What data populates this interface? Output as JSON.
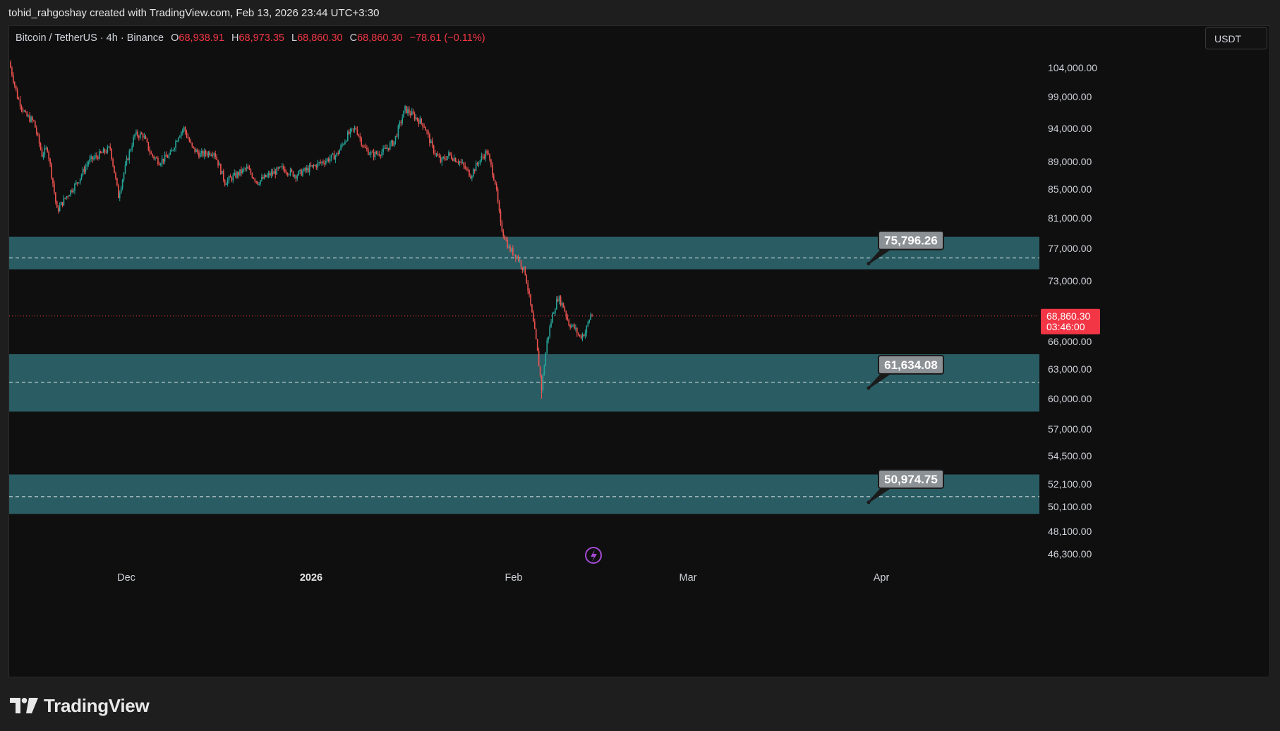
{
  "header": {
    "attribution": "tohid_rahgoshay created with TradingView.com, Feb 13, 2026 23:44 UTC+3:30"
  },
  "legend": {
    "symbol": "Bitcoin / TetherUS · 4h · Binance",
    "open_label": "O",
    "open": "68,938.91",
    "high_label": "H",
    "high": "68,973.35",
    "low_label": "L",
    "low": "68,860.30",
    "close_label": "C",
    "close": "68,860.30",
    "change": "−78.61 (−0.11%)"
  },
  "currency": "USDT",
  "last_price": {
    "value": "68,860.30",
    "countdown": "03:46:00",
    "color": "#f23645"
  },
  "colors": {
    "zone": "#2a5c64",
    "up": "#26a69a",
    "down": "#ef5350",
    "accent": "#f23645"
  },
  "watermark": {
    "icon": "lightning-icon",
    "color": "#a64bd6"
  },
  "brand": {
    "name": "TradingView"
  },
  "chart_data": {
    "type": "candlestick",
    "interval": "4h",
    "y_ticks": [
      "104,000.00",
      "99,000.00",
      "94,000.00",
      "89,000.00",
      "85,000.00",
      "81,000.00",
      "77,000.00",
      "73,000.00",
      "66,000.00",
      "63,000.00",
      "60,000.00",
      "57,000.00",
      "54,500.00",
      "52,100.00",
      "50,100.00",
      "48,100.00",
      "46,300.00"
    ],
    "x_ticks": [
      {
        "label": "Dec",
        "bold": false
      },
      {
        "label": "2026",
        "bold": true
      },
      {
        "label": "Feb",
        "bold": false
      },
      {
        "label": "Mar",
        "bold": false
      },
      {
        "label": "Apr",
        "bold": false
      }
    ],
    "zones": [
      {
        "label": "75,796.26",
        "value": 75796.26,
        "top": 78500,
        "bottom": 74400
      },
      {
        "label": "61,634.08",
        "value": 61634.08,
        "top": 64600,
        "bottom": 58700
      },
      {
        "label": "50,974.75",
        "value": 50974.75,
        "top": 52900,
        "bottom": 49500
      }
    ],
    "price_path": [
      [
        0,
        105000
      ],
      [
        6,
        99000
      ],
      [
        12,
        96000
      ],
      [
        18,
        95000
      ],
      [
        24,
        90000
      ],
      [
        28,
        91000
      ],
      [
        35,
        82000
      ],
      [
        42,
        84000
      ],
      [
        50,
        86000
      ],
      [
        58,
        89000
      ],
      [
        66,
        90000
      ],
      [
        74,
        91000
      ],
      [
        80,
        84000
      ],
      [
        86,
        89000
      ],
      [
        92,
        93000
      ],
      [
        98,
        93000
      ],
      [
        104,
        90000
      ],
      [
        110,
        89000
      ],
      [
        118,
        90000
      ],
      [
        124,
        93000
      ],
      [
        128,
        94000
      ],
      [
        134,
        91000
      ],
      [
        140,
        90000
      ],
      [
        150,
        90500
      ],
      [
        158,
        86000
      ],
      [
        166,
        87000
      ],
      [
        174,
        88000
      ],
      [
        182,
        86000
      ],
      [
        190,
        87000
      ],
      [
        200,
        88000
      ],
      [
        210,
        87000
      ],
      [
        220,
        88000
      ],
      [
        230,
        89000
      ],
      [
        240,
        90000
      ],
      [
        248,
        93000
      ],
      [
        254,
        94000
      ],
      [
        260,
        91000
      ],
      [
        266,
        90000
      ],
      [
        274,
        90500
      ],
      [
        282,
        92000
      ],
      [
        290,
        97000
      ],
      [
        296,
        96000
      ],
      [
        304,
        94500
      ],
      [
        310,
        91000
      ],
      [
        316,
        89000
      ],
      [
        322,
        90000
      ],
      [
        330,
        89000
      ],
      [
        338,
        87000
      ],
      [
        344,
        89000
      ],
      [
        350,
        90500
      ],
      [
        356,
        86000
      ],
      [
        360,
        80000
      ],
      [
        366,
        77000
      ],
      [
        372,
        76000
      ],
      [
        378,
        74000
      ],
      [
        382,
        70000
      ],
      [
        386,
        66000
      ],
      [
        390,
        61000
      ],
      [
        394,
        66000
      ],
      [
        398,
        69000
      ],
      [
        402,
        71000
      ],
      [
        406,
        70000
      ],
      [
        410,
        68000
      ],
      [
        414,
        67500
      ],
      [
        418,
        66500
      ],
      [
        422,
        67000
      ],
      [
        426,
        69000
      ]
    ]
  }
}
